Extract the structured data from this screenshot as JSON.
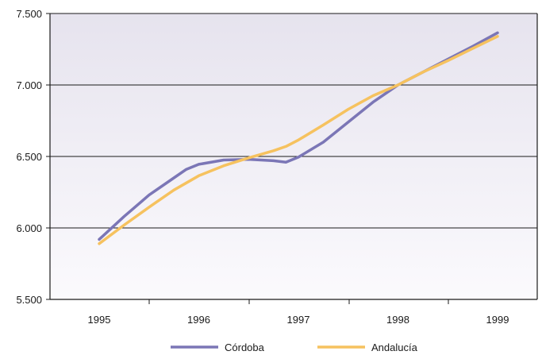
{
  "chart_data": {
    "type": "line",
    "title": "",
    "xlabel": "",
    "ylabel": "",
    "x": [
      1995,
      1995.25,
      1995.5,
      1995.75,
      1995.875,
      1996,
      1996.25,
      1996.5,
      1996.75,
      1996.875,
      1997,
      1997.25,
      1997.5,
      1997.75,
      1998,
      1998.25,
      1998.5,
      1998.75,
      1999
    ],
    "x_ticks": [
      "1995",
      "1996",
      "1997",
      "1998",
      "1999"
    ],
    "ylim": [
      5500,
      7500
    ],
    "y_ticks": [
      "5.500",
      "6.000",
      "6.500",
      "7.000",
      "7.500"
    ],
    "y_tick_values": [
      5500,
      6000,
      6500,
      7000,
      7500
    ],
    "grid": true,
    "legend_position": "bottom",
    "series": [
      {
        "name": "Córdoba",
        "color": "#7b76b6",
        "values": [
          5920,
          6080,
          6230,
          6350,
          6410,
          6445,
          6475,
          6480,
          6470,
          6460,
          6495,
          6600,
          6740,
          6880,
          7000,
          7090,
          7180,
          7270,
          7365
        ]
      },
      {
        "name": "Andalucía",
        "color": "#f6c25f",
        "values": [
          5890,
          6020,
          6145,
          6265,
          6315,
          6365,
          6435,
          6490,
          6540,
          6570,
          6615,
          6720,
          6830,
          6925,
          7000,
          7090,
          7170,
          7255,
          7340
        ]
      }
    ]
  }
}
